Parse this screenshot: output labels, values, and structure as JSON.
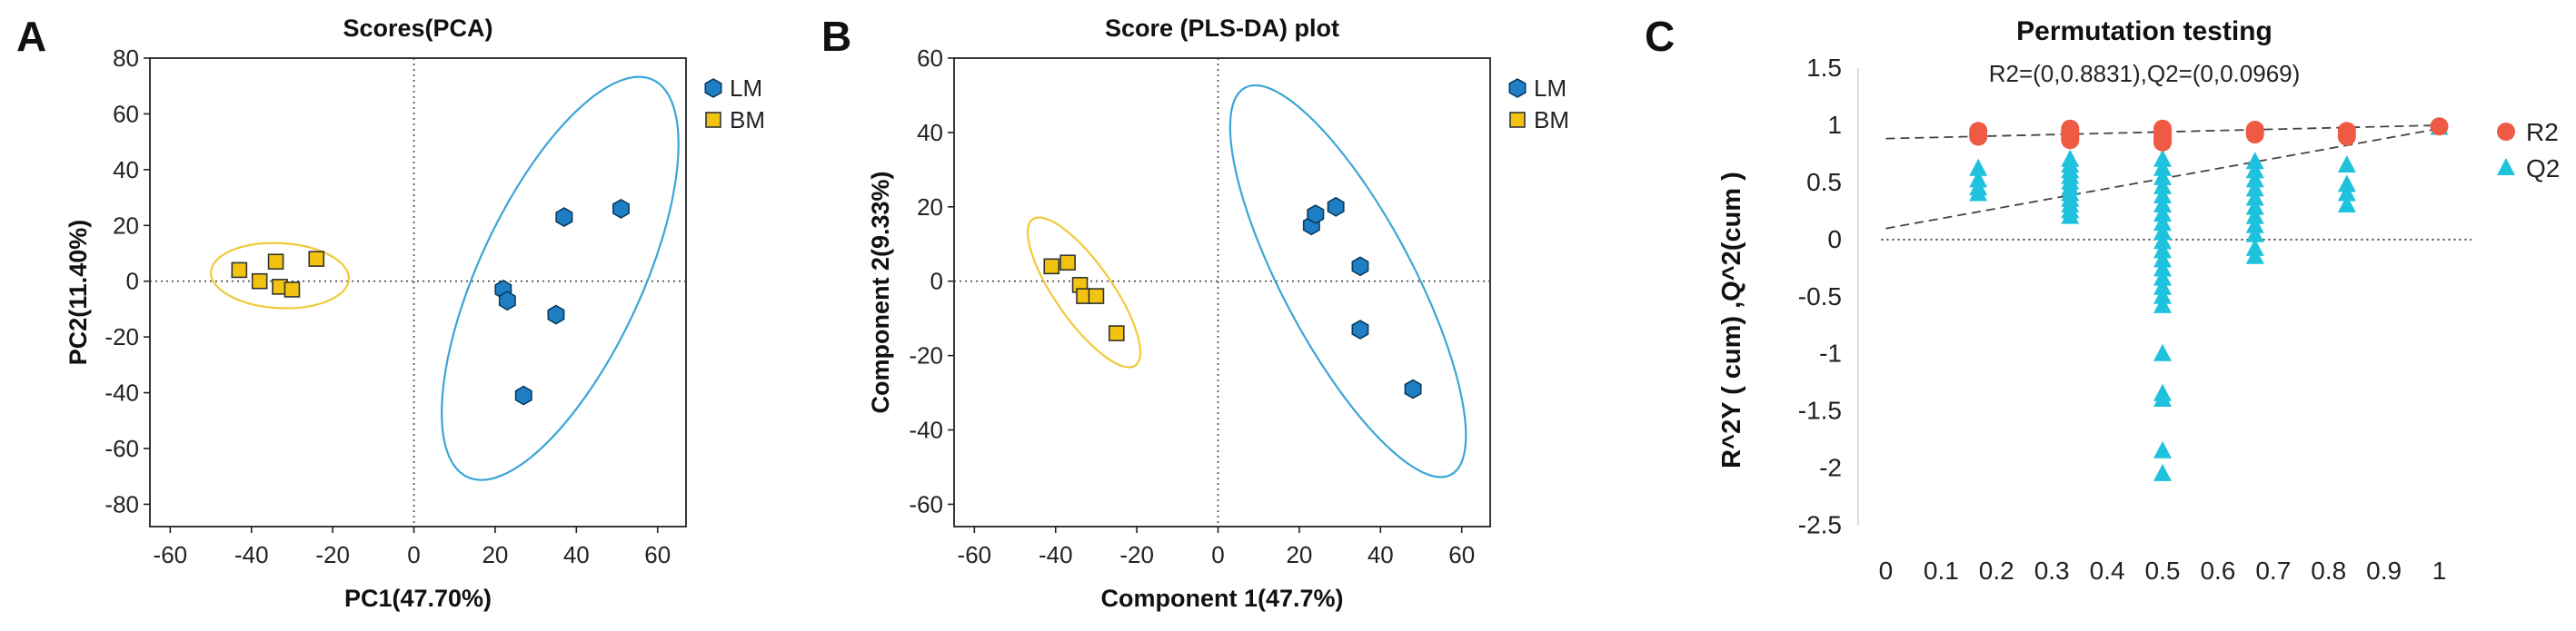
{
  "chart_data": [
    {
      "panel": "A",
      "type": "scatter",
      "title": "Scores(PCA)",
      "xlabel": "PC1(47.70%)",
      "ylabel": "PC2(11.40%)",
      "xlim": [
        -65,
        67
      ],
      "ylim": [
        -88,
        80
      ],
      "xticks": [
        -60,
        -40,
        -20,
        0,
        20,
        40,
        60
      ],
      "yticks": [
        80,
        60,
        40,
        20,
        0,
        -20,
        -40,
        -60,
        -80
      ],
      "legend_position": "top-right",
      "series": [
        {
          "name": "LM",
          "marker": "hexagon",
          "color": "#1f7fc4",
          "points": [
            [
              22,
              -3
            ],
            [
              23,
              -7
            ],
            [
              27,
              -41
            ],
            [
              35,
              -12
            ],
            [
              37,
              23
            ],
            [
              51,
              26
            ]
          ]
        },
        {
          "name": "BM",
          "marker": "square",
          "color": "#f2c40f",
          "points": [
            [
              -43,
              4
            ],
            [
              -38,
              0
            ],
            [
              -34,
              7
            ],
            [
              -33,
              -2
            ],
            [
              -30,
              -3
            ],
            [
              -24,
              8
            ]
          ]
        }
      ],
      "ellipses": [
        {
          "group": "LM",
          "cx": 36,
          "cy": 1,
          "rx": 54,
          "ry": 20,
          "angle": 65,
          "color": "#3aa6d6"
        },
        {
          "group": "BM",
          "cx": -33,
          "cy": 2,
          "rx": 17,
          "ry": 8,
          "angle": -3,
          "color": "#f0c93a"
        }
      ]
    },
    {
      "panel": "B",
      "type": "scatter",
      "title": "Score (PLS-DA) plot",
      "xlabel": "Component 1(47.7%)",
      "ylabel": "Component 2(9.33%)",
      "xlim": [
        -65,
        67
      ],
      "ylim": [
        -66,
        60
      ],
      "xticks": [
        -60,
        -40,
        -20,
        0,
        20,
        40,
        60
      ],
      "yticks": [
        60,
        40,
        20,
        0,
        -20,
        -40,
        -60
      ],
      "legend_position": "top-right",
      "series": [
        {
          "name": "LM",
          "marker": "hexagon",
          "color": "#1f7fc4",
          "points": [
            [
              23,
              15
            ],
            [
              24,
              18
            ],
            [
              29,
              20
            ],
            [
              35,
              4
            ],
            [
              35,
              -13
            ],
            [
              48,
              -29
            ]
          ]
        },
        {
          "name": "BM",
          "marker": "square",
          "color": "#f2c40f",
          "points": [
            [
              -41,
              4
            ],
            [
              -37,
              5
            ],
            [
              -34,
              -1
            ],
            [
              -33,
              -4
            ],
            [
              -30,
              -4
            ],
            [
              -25,
              -14
            ]
          ]
        }
      ],
      "ellipses": [
        {
          "group": "LM",
          "cx": 32,
          "cy": 0,
          "rx": 54,
          "ry": 16,
          "angle": -62,
          "color": "#3aa6d6"
        },
        {
          "group": "BM",
          "cx": -33,
          "cy": -3,
          "rx": 22,
          "ry": 7,
          "angle": -55,
          "color": "#f0c93a"
        }
      ]
    },
    {
      "panel": "C",
      "type": "scatter",
      "title": "Permutation testing",
      "subtitle": "R2=(0,0.8831),Q2=(0,0.0969)",
      "xlabel": "",
      "ylabel": "R^2Y ( cum) ,Q^2(cum )",
      "xlim": [
        -0.05,
        1.05
      ],
      "ylim": [
        -2.75,
        1.5
      ],
      "xticks": [
        "0",
        "0.1",
        "0.2",
        "0.3",
        "0.4",
        "0.5",
        "0.6",
        "0.7",
        "0.8",
        "0.9",
        "1"
      ],
      "yticks": [
        "1.5",
        "1",
        "0.5",
        "0",
        "-0.5",
        "-1",
        "-1.5",
        "-2",
        "-2.5"
      ],
      "legend_position": "right",
      "baseline": 0,
      "series": [
        {
          "name": "R2",
          "marker": "circle",
          "color": "#ef5a45",
          "points": [
            [
              0.167,
              0.95
            ],
            [
              0.167,
              0.92
            ],
            [
              0.167,
              0.9
            ],
            [
              0.333,
              0.97
            ],
            [
              0.333,
              0.95
            ],
            [
              0.333,
              0.93
            ],
            [
              0.333,
              0.91
            ],
            [
              0.333,
              0.89
            ],
            [
              0.333,
              0.87
            ],
            [
              0.5,
              0.97
            ],
            [
              0.5,
              0.95
            ],
            [
              0.5,
              0.93
            ],
            [
              0.5,
              0.91
            ],
            [
              0.5,
              0.89
            ],
            [
              0.5,
              0.87
            ],
            [
              0.5,
              0.85
            ],
            [
              0.667,
              0.96
            ],
            [
              0.667,
              0.94
            ],
            [
              0.667,
              0.92
            ],
            [
              0.833,
              0.95
            ],
            [
              0.833,
              0.92
            ],
            [
              0.833,
              0.9
            ],
            [
              1.0,
              0.99
            ]
          ]
        },
        {
          "name": "Q2",
          "marker": "triangle",
          "color": "#1fc2dc",
          "points": [
            [
              0.167,
              0.62
            ],
            [
              0.167,
              0.52
            ],
            [
              0.167,
              0.45
            ],
            [
              0.167,
              0.4
            ],
            [
              0.333,
              0.7
            ],
            [
              0.333,
              0.65
            ],
            [
              0.333,
              0.6
            ],
            [
              0.333,
              0.55
            ],
            [
              0.333,
              0.5
            ],
            [
              0.333,
              0.45
            ],
            [
              0.333,
              0.4
            ],
            [
              0.333,
              0.35
            ],
            [
              0.333,
              0.3
            ],
            [
              0.333,
              0.25
            ],
            [
              0.333,
              0.2
            ],
            [
              0.5,
              0.7
            ],
            [
              0.5,
              0.62
            ],
            [
              0.5,
              0.54
            ],
            [
              0.5,
              0.46
            ],
            [
              0.5,
              0.38
            ],
            [
              0.5,
              0.3
            ],
            [
              0.5,
              0.22
            ],
            [
              0.5,
              0.14
            ],
            [
              0.5,
              0.06
            ],
            [
              0.5,
              -0.02
            ],
            [
              0.5,
              -0.1
            ],
            [
              0.5,
              -0.18
            ],
            [
              0.5,
              -0.26
            ],
            [
              0.5,
              -0.34
            ],
            [
              0.5,
              -0.42
            ],
            [
              0.5,
              -0.5
            ],
            [
              0.5,
              -0.58
            ],
            [
              0.5,
              -1.0
            ],
            [
              0.5,
              -1.35
            ],
            [
              0.5,
              -1.4
            ],
            [
              0.5,
              -1.85
            ],
            [
              0.5,
              -2.05
            ],
            [
              0.667,
              0.68
            ],
            [
              0.667,
              0.6
            ],
            [
              0.667,
              0.52
            ],
            [
              0.667,
              0.44
            ],
            [
              0.667,
              0.36
            ],
            [
              0.667,
              0.28
            ],
            [
              0.667,
              0.2
            ],
            [
              0.667,
              0.12
            ],
            [
              0.667,
              0.04
            ],
            [
              0.667,
              -0.08
            ],
            [
              0.667,
              -0.15
            ],
            [
              0.833,
              0.65
            ],
            [
              0.833,
              0.48
            ],
            [
              0.833,
              0.4
            ],
            [
              0.833,
              0.3
            ],
            [
              1.0,
              0.98
            ]
          ]
        }
      ],
      "regression_lines": [
        {
          "name": "R2",
          "x0": 0,
          "y0": 0.8831,
          "x1": 1,
          "y1": 1.0
        },
        {
          "name": "Q2",
          "x0": 0,
          "y0": 0.0969,
          "x1": 1,
          "y1": 0.97
        }
      ]
    }
  ]
}
